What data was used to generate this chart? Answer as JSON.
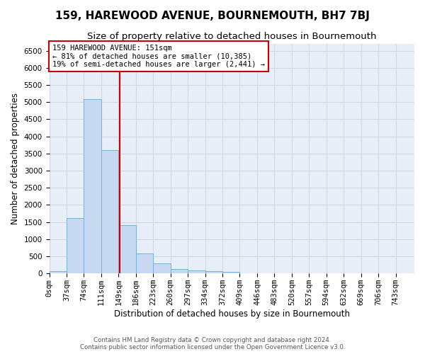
{
  "title": "159, HAREWOOD AVENUE, BOURNEMOUTH, BH7 7BJ",
  "subtitle": "Size of property relative to detached houses in Bournemouth",
  "xlabel": "Distribution of detached houses by size in Bournemouth",
  "ylabel": "Number of detached properties",
  "footer_line1": "Contains HM Land Registry data © Crown copyright and database right 2024.",
  "footer_line2": "Contains public sector information licensed under the Open Government Licence v3.0.",
  "bin_labels": [
    "0sqm",
    "37sqm",
    "74sqm",
    "111sqm",
    "149sqm",
    "186sqm",
    "223sqm",
    "260sqm",
    "297sqm",
    "334sqm",
    "372sqm",
    "409sqm",
    "446sqm",
    "483sqm",
    "520sqm",
    "557sqm",
    "594sqm",
    "632sqm",
    "669sqm",
    "706sqm",
    "743sqm"
  ],
  "bar_values": [
    75,
    1620,
    5080,
    3600,
    1410,
    580,
    290,
    135,
    95,
    70,
    50,
    0,
    0,
    0,
    0,
    0,
    0,
    0,
    0,
    0,
    0
  ],
  "bar_color": "#c6d9f0",
  "bar_edgecolor": "#7bafd4",
  "vline_x": 151,
  "vline_color": "#cc0000",
  "annotation_text": "159 HAREWOOD AVENUE: 151sqm\n← 81% of detached houses are smaller (10,385)\n19% of semi-detached houses are larger (2,441) →",
  "ylim": [
    0,
    6700
  ],
  "xlim_max": 780,
  "bin_width": 37,
  "background_color": "#e8eef8",
  "grid_color": "#d0d8e8",
  "title_fontsize": 11,
  "subtitle_fontsize": 9.5,
  "axis_label_fontsize": 8.5,
  "tick_fontsize": 7.5,
  "annotation_fontsize": 7.5,
  "yticks": [
    0,
    500,
    1000,
    1500,
    2000,
    2500,
    3000,
    3500,
    4000,
    4500,
    5000,
    5500,
    6000,
    6500
  ]
}
